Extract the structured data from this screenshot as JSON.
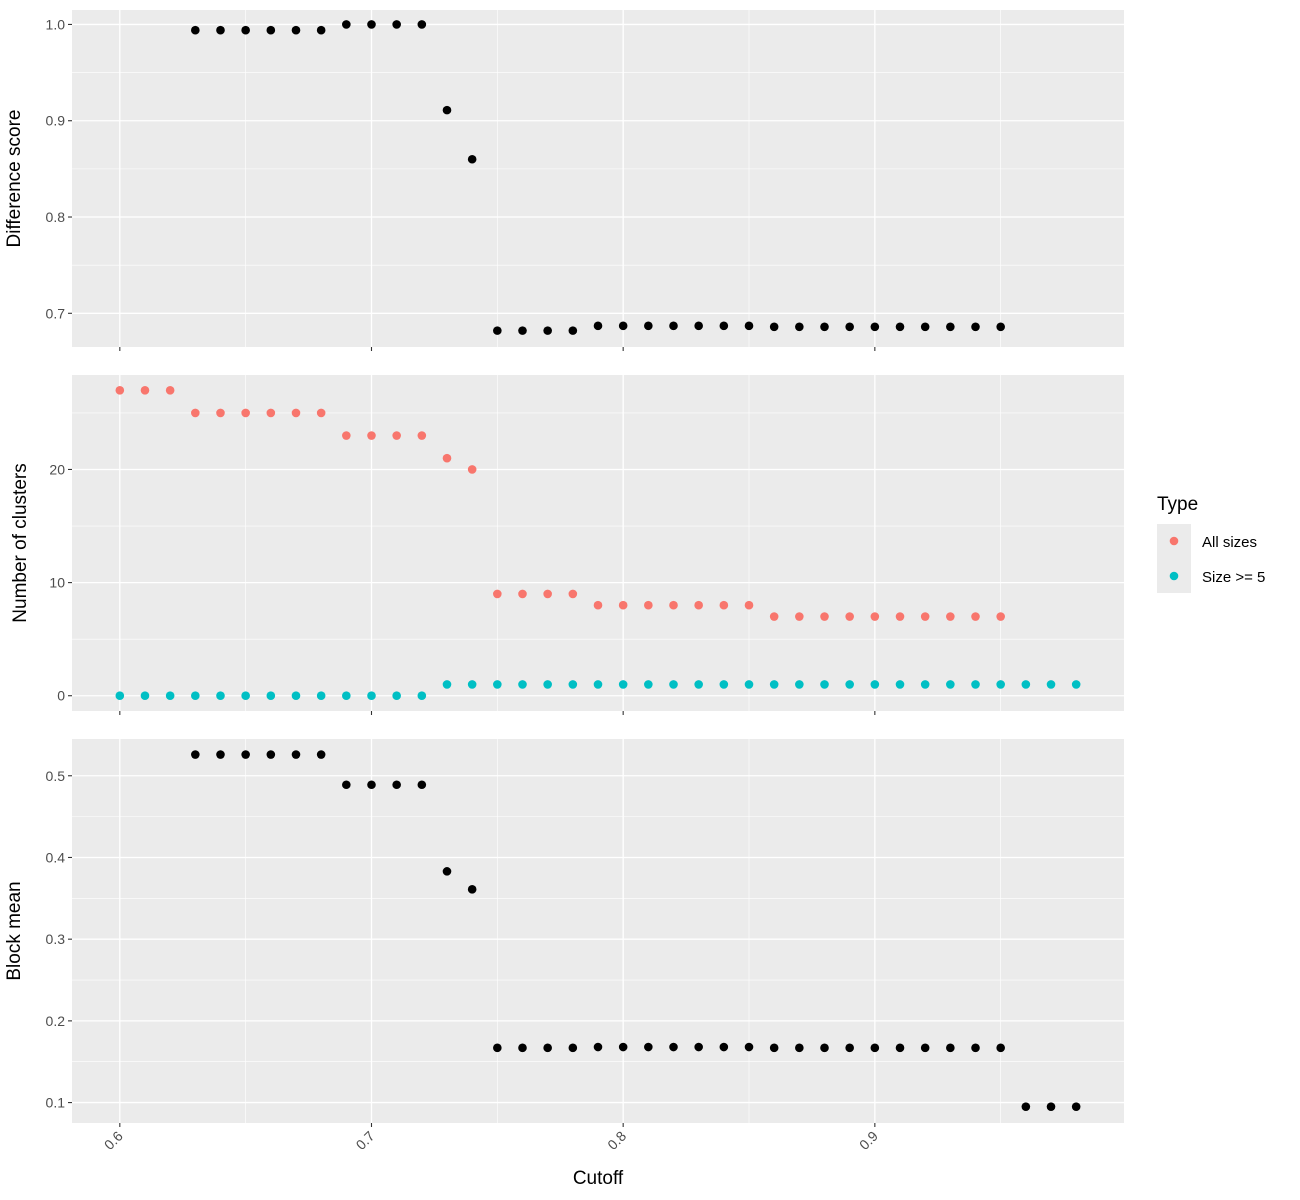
{
  "chart_data": [
    {
      "panel": "top",
      "type": "scatter",
      "ylabel": "Difference score",
      "ylim": [
        0.665,
        1.015
      ],
      "yticks": [
        0.7,
        0.8,
        0.9,
        1.0
      ],
      "ytick_labels": [
        "0.7",
        "0.8",
        "0.9",
        "1.0"
      ],
      "series": [
        {
          "x": [
            0.63,
            0.64,
            0.65,
            0.66,
            0.67,
            0.68,
            0.69,
            0.7,
            0.71,
            0.72,
            0.73,
            0.74,
            0.75,
            0.76,
            0.77,
            0.78,
            0.79,
            0.8,
            0.81,
            0.82,
            0.83,
            0.84,
            0.85,
            0.86,
            0.87,
            0.88,
            0.89,
            0.9,
            0.91,
            0.92,
            0.93,
            0.94,
            0.95
          ],
          "y": [
            0.994,
            0.994,
            0.994,
            0.994,
            0.994,
            0.994,
            1.0,
            1.0,
            1.0,
            1.0,
            0.911,
            0.86,
            0.682,
            0.682,
            0.682,
            0.682,
            0.687,
            0.687,
            0.687,
            0.687,
            0.687,
            0.687,
            0.687,
            0.686,
            0.686,
            0.686,
            0.686,
            0.686,
            0.686,
            0.686,
            0.686,
            0.686,
            0.686
          ]
        }
      ]
    },
    {
      "panel": "middle",
      "type": "scatter",
      "ylabel": "Number of clusters",
      "ylim": [
        -1.35,
        28.35
      ],
      "yticks": [
        0,
        10,
        20
      ],
      "ytick_labels": [
        "0",
        "10",
        "20"
      ],
      "series": [
        {
          "name": "All sizes",
          "x": [
            0.6,
            0.61,
            0.62,
            0.63,
            0.64,
            0.65,
            0.66,
            0.67,
            0.68,
            0.69,
            0.7,
            0.71,
            0.72,
            0.73,
            0.74,
            0.75,
            0.76,
            0.77,
            0.78,
            0.79,
            0.8,
            0.81,
            0.82,
            0.83,
            0.84,
            0.85,
            0.86,
            0.87,
            0.88,
            0.89,
            0.9,
            0.91,
            0.92,
            0.93,
            0.94,
            0.95
          ],
          "y": [
            27,
            27,
            27,
            25,
            25,
            25,
            25,
            25,
            25,
            23,
            23,
            23,
            23,
            21,
            20,
            9,
            9,
            9,
            9,
            8,
            8,
            8,
            8,
            8,
            8,
            8,
            7,
            7,
            7,
            7,
            7,
            7,
            7,
            7,
            7,
            7
          ]
        },
        {
          "name": "Size >= 5",
          "x": [
            0.6,
            0.61,
            0.62,
            0.63,
            0.64,
            0.65,
            0.66,
            0.67,
            0.68,
            0.69,
            0.7,
            0.71,
            0.72,
            0.73,
            0.74,
            0.75,
            0.76,
            0.77,
            0.78,
            0.79,
            0.8,
            0.81,
            0.82,
            0.83,
            0.84,
            0.85,
            0.86,
            0.87,
            0.88,
            0.89,
            0.9,
            0.91,
            0.92,
            0.93,
            0.94,
            0.95,
            0.96,
            0.97,
            0.98
          ],
          "y": [
            0,
            0,
            0,
            0,
            0,
            0,
            0,
            0,
            0,
            0,
            0,
            0,
            0,
            1,
            1,
            1,
            1,
            1,
            1,
            1,
            1,
            1,
            1,
            1,
            1,
            1,
            1,
            1,
            1,
            1,
            1,
            1,
            1,
            1,
            1,
            1,
            1,
            1,
            1
          ]
        }
      ]
    },
    {
      "panel": "bottom",
      "type": "scatter",
      "ylabel": "Block mean",
      "ylim": [
        0.075,
        0.545
      ],
      "yticks": [
        0.1,
        0.2,
        0.3,
        0.4,
        0.5
      ],
      "ytick_labels": [
        "0.1",
        "0.2",
        "0.3",
        "0.4",
        "0.5"
      ],
      "series": [
        {
          "x": [
            0.63,
            0.64,
            0.65,
            0.66,
            0.67,
            0.68,
            0.69,
            0.7,
            0.71,
            0.72,
            0.73,
            0.74,
            0.75,
            0.76,
            0.77,
            0.78,
            0.79,
            0.8,
            0.81,
            0.82,
            0.83,
            0.84,
            0.85,
            0.86,
            0.87,
            0.88,
            0.89,
            0.9,
            0.91,
            0.92,
            0.93,
            0.94,
            0.95,
            0.96,
            0.97,
            0.98
          ],
          "y": [
            0.526,
            0.526,
            0.526,
            0.526,
            0.526,
            0.526,
            0.489,
            0.489,
            0.489,
            0.489,
            0.383,
            0.361,
            0.167,
            0.167,
            0.167,
            0.167,
            0.168,
            0.168,
            0.168,
            0.168,
            0.168,
            0.168,
            0.168,
            0.167,
            0.167,
            0.167,
            0.167,
            0.167,
            0.167,
            0.167,
            0.167,
            0.167,
            0.167,
            0.095,
            0.095,
            0.095
          ]
        }
      ]
    }
  ],
  "shared_x": {
    "xlabel": "Cutoff",
    "xlim": [
      0.581,
      0.999
    ],
    "xticks": [
      0.6,
      0.7,
      0.8,
      0.9
    ],
    "xtick_labels": [
      "0.6",
      "0.7",
      "0.8",
      "0.9"
    ]
  },
  "legend": {
    "title": "Type",
    "placement": "right",
    "entries": [
      {
        "label": "All sizes",
        "color": "#F8766D"
      },
      {
        "label": "Size >= 5",
        "color": "#00BFC4"
      }
    ]
  },
  "colors": {
    "panel_bg": "#EBEBEB",
    "grid_major": "#FFFFFF",
    "point_default": "#000000"
  }
}
